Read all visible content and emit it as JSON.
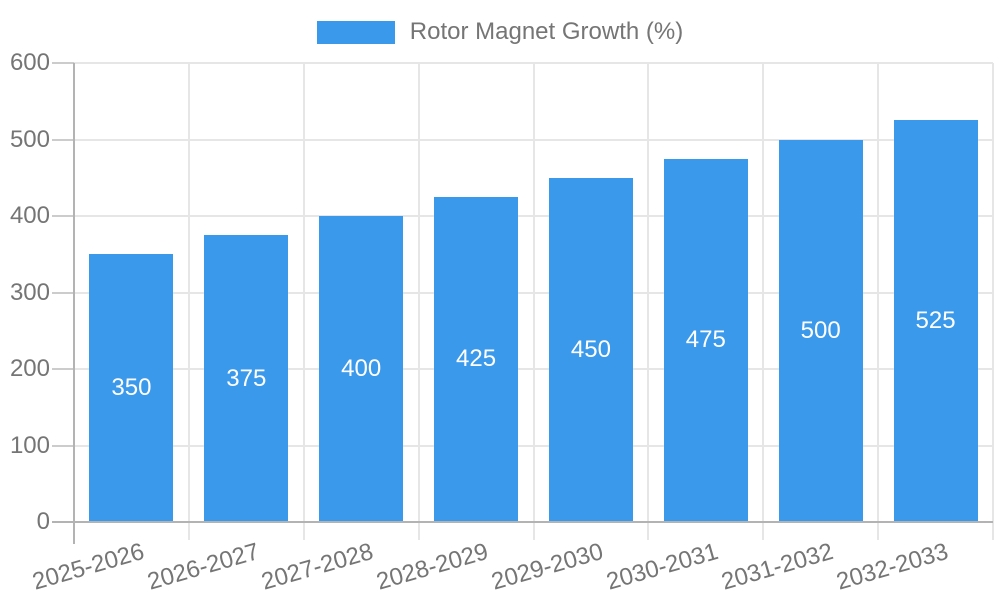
{
  "chart_data": {
    "type": "bar",
    "title": "",
    "legend": {
      "label": "Rotor Magnet Growth (%)",
      "position": "top"
    },
    "categories": [
      "2025-2026",
      "2026-2027",
      "2027-2028",
      "2028-2029",
      "2029-2030",
      "2030-2031",
      "2031-2032",
      "2032-2033"
    ],
    "series": [
      {
        "name": "Rotor Magnet Growth (%)",
        "values": [
          350,
          375,
          400,
          425,
          450,
          475,
          500,
          525
        ]
      }
    ],
    "data_labels_shown": true,
    "xlabel": "",
    "ylabel": "",
    "ylim": [
      0,
      600
    ],
    "ytick_step": 100,
    "yticks": [
      0,
      100,
      200,
      300,
      400,
      500,
      600
    ],
    "grid": true,
    "x_label_rotation_deg": -16
  },
  "colors": {
    "bar": "#3b99ec",
    "bar_label_text": "#ffffff",
    "axis_text": "#757575",
    "grid": "#e6e6e6",
    "tick": "#cccccc",
    "axis_line": "#b3b3b3",
    "background": "#ffffff"
  }
}
